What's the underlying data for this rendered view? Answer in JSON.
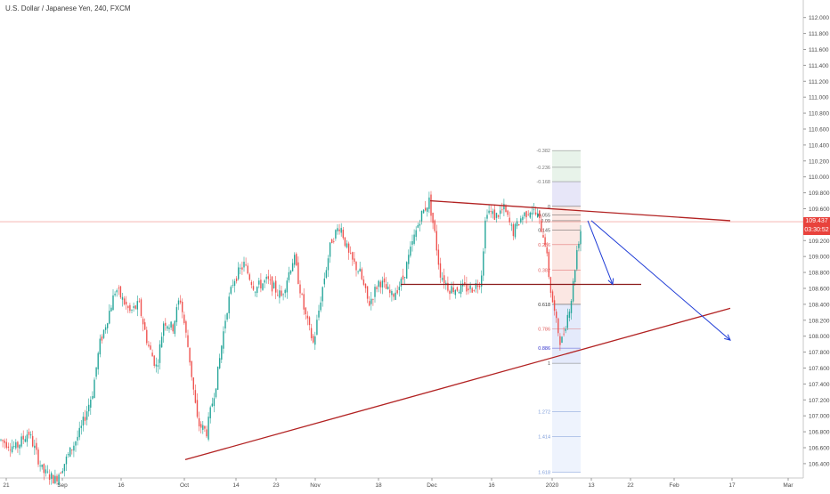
{
  "chart_data": {
    "type": "candlestick",
    "title": "U.S. Dollar / Japanese Yen, 240, FXCM",
    "y_axis": {
      "range": [
        106.22,
        112.22
      ],
      "ticks": [
        "112.000",
        "111.800",
        "111.600",
        "111.400",
        "111.200",
        "111.000",
        "110.800",
        "110.600",
        "110.400",
        "110.200",
        "110.000",
        "109.800",
        "109.600",
        "109.400",
        "109.200",
        "109.000",
        "108.800",
        "108.600",
        "108.400",
        "108.200",
        "108.000",
        "107.800",
        "107.600",
        "107.400",
        "107.200",
        "107.000",
        "106.800",
        "106.600",
        "106.400"
      ],
      "tick_values": [
        112.0,
        111.8,
        111.6,
        111.4,
        111.2,
        111.0,
        110.8,
        110.6,
        110.4,
        110.2,
        110.0,
        109.8,
        109.6,
        109.4,
        109.2,
        109.0,
        108.8,
        108.6,
        108.4,
        108.2,
        108.0,
        107.8,
        107.6,
        107.4,
        107.2,
        107.0,
        106.8,
        106.6,
        106.4
      ]
    },
    "x_axis": {
      "labels": [
        "21",
        "Sep",
        "16",
        "Oct",
        "14",
        "23",
        "Nov",
        "18",
        "Dec",
        "16",
        "2020",
        "13",
        "22",
        "Feb",
        "17",
        "Mar"
      ]
    },
    "price_path": [
      [
        0,
        106.7
      ],
      [
        18,
        106.6
      ],
      [
        32,
        106.8
      ],
      [
        48,
        106.3
      ],
      [
        62,
        106.2
      ],
      [
        72,
        106.4
      ],
      [
        90,
        106.8
      ],
      [
        104,
        107.3
      ],
      [
        112,
        107.9
      ],
      [
        120,
        108.2
      ],
      [
        130,
        108.6
      ],
      [
        146,
        108.3
      ],
      [
        156,
        108.4
      ],
      [
        166,
        107.9
      ],
      [
        176,
        107.6
      ],
      [
        184,
        108.2
      ],
      [
        194,
        108.1
      ],
      [
        202,
        108.5
      ],
      [
        212,
        107.8
      ],
      [
        222,
        106.9
      ],
      [
        232,
        106.8
      ],
      [
        244,
        107.5
      ],
      [
        254,
        108.3
      ],
      [
        262,
        108.7
      ],
      [
        274,
        108.9
      ],
      [
        286,
        108.6
      ],
      [
        300,
        108.7
      ],
      [
        316,
        108.5
      ],
      [
        330,
        109.0
      ],
      [
        342,
        108.3
      ],
      [
        352,
        107.9
      ],
      [
        362,
        108.6
      ],
      [
        372,
        109.2
      ],
      [
        382,
        109.4
      ],
      [
        392,
        109.0
      ],
      [
        404,
        108.8
      ],
      [
        414,
        108.4
      ],
      [
        426,
        108.7
      ],
      [
        440,
        108.5
      ],
      [
        452,
        108.7
      ],
      [
        464,
        109.2
      ],
      [
        472,
        109.5
      ],
      [
        482,
        109.7
      ],
      [
        488,
        109.3
      ],
      [
        494,
        108.8
      ],
      [
        504,
        108.6
      ],
      [
        518,
        108.6
      ],
      [
        530,
        108.6
      ],
      [
        540,
        108.7
      ],
      [
        546,
        109.6
      ],
      [
        556,
        109.5
      ],
      [
        566,
        109.6
      ],
      [
        576,
        109.3
      ],
      [
        586,
        109.5
      ],
      [
        596,
        109.6
      ],
      [
        604,
        109.5
      ],
      [
        612,
        109.2
      ],
      [
        618,
        108.6
      ],
      [
        624,
        108.2
      ],
      [
        630,
        107.9
      ],
      [
        636,
        108.2
      ],
      [
        642,
        108.5
      ],
      [
        648,
        109.1
      ],
      [
        654,
        109.45
      ]
    ],
    "current_price": "109.437",
    "countdown": "03:30:52",
    "current_price_value": 109.437,
    "trendlines": [
      {
        "name": "upper-resistance",
        "from": {
          "date": "Nov 30",
          "price": 109.7
        },
        "to": {
          "date": "Jan 17",
          "price": 109.45
        },
        "color": "#b22222"
      },
      {
        "name": "lower-support",
        "from": {
          "date": "Oct 1",
          "price": 106.45
        },
        "to": {
          "date": "Jan 17",
          "price": 108.35
        },
        "color": "#b22222"
      },
      {
        "name": "horizontal-support",
        "from": {
          "date": "Nov 22",
          "price": 108.65
        },
        "to": {
          "date": "Jan 12",
          "price": 108.65
        },
        "color": "#8b1a1a"
      }
    ],
    "projection_arrows": [
      {
        "from": {
          "date": "Jan 8",
          "price": 109.45
        },
        "to": {
          "date": "Jan 14",
          "price": 108.65
        },
        "color": "#1e3bd6"
      },
      {
        "from": {
          "date": "Jan 9",
          "price": 109.45
        },
        "to": {
          "date": "Jan 17",
          "price": 107.95
        },
        "color": "#1e3bd6"
      }
    ],
    "fibonacci": {
      "levels": [
        {
          "label": "-0.382",
          "price": 110.33
        },
        {
          "label": "-0.236",
          "price": 110.12
        },
        {
          "label": "-0.168",
          "price": 109.94
        },
        {
          "label": "0",
          "price": 109.63
        },
        {
          "label": "0.055",
          "price": 109.52
        },
        {
          "label": "0.09",
          "price": 109.45
        },
        {
          "label": "0.145",
          "price": 109.33
        },
        {
          "label": "0.236",
          "price": 109.15
        },
        {
          "label": "0.382",
          "price": 108.83
        },
        {
          "label": "0.618",
          "price": 108.4
        },
        {
          "label": "0.786",
          "price": 108.09
        },
        {
          "label": "0.886",
          "price": 107.85
        },
        {
          "label": "1",
          "price": 107.66
        },
        {
          "label": "1.272",
          "price": 107.05
        },
        {
          "label": "1.414",
          "price": 106.74
        },
        {
          "label": "1.618",
          "price": 106.29
        }
      ]
    }
  }
}
